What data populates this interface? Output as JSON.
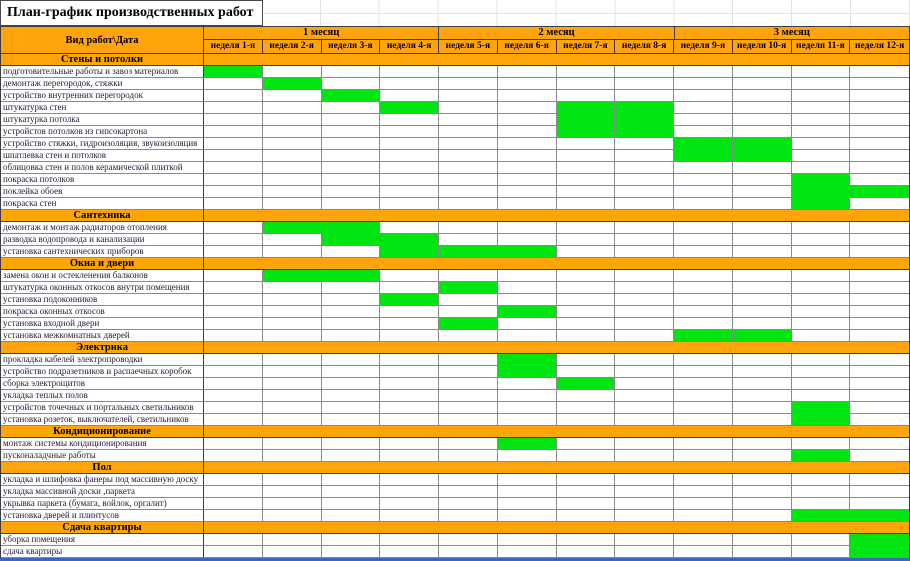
{
  "colors": {
    "header_orange": "#FFA40A",
    "bar_green": "#00E411",
    "grid_dark": "#3d3d3d",
    "grid_light": "#8a8a8a",
    "selection_blue": "#3D64C8"
  },
  "chart_data": {
    "type": "table",
    "subtype": "gantt-schedule",
    "title": "План-график производственных работ",
    "corner_label": "Вид работ\\Дата",
    "legend": "green cell = work scheduled for that week",
    "months": [
      {
        "label": "1 месяц",
        "weeks": [
          "неделя 1-я",
          "неделя 2-я",
          "неделя 3-я",
          "неделя 4-я"
        ]
      },
      {
        "label": "2 месяц",
        "weeks": [
          "неделя 5-я",
          "неделя 6-я",
          "неделя 7-я",
          "неделя 8-я"
        ]
      },
      {
        "label": "3 месяц",
        "weeks": [
          "неделя 9-я",
          "неделя 10-я",
          "неделя 11-я",
          "неделя 12-я"
        ]
      }
    ],
    "sections": [
      {
        "name": "Стены и потолки",
        "tasks": [
          {
            "label": "подготовительные работы и завоз материалов",
            "weeks": [
              1
            ]
          },
          {
            "label": "демонтаж перегородок, стяжки",
            "weeks": [
              2
            ]
          },
          {
            "label": "устройство внутренних перегородок",
            "weeks": [
              3
            ]
          },
          {
            "label": "штукатурка стен",
            "weeks": [
              4,
              7,
              8
            ]
          },
          {
            "label": "штукатурка потолка",
            "weeks": [
              7,
              8
            ]
          },
          {
            "label": "устройстов потолков из гипсокартона",
            "weeks": [
              7,
              8
            ]
          },
          {
            "label": "устройство стяжки, гидроизоляция, звукоизоляция",
            "weeks": [
              9,
              10
            ]
          },
          {
            "label": "шпатлевка стен и потолков",
            "weeks": [
              9,
              10
            ]
          },
          {
            "label": "облицовка стен и полов керамической плиткой",
            "weeks": []
          },
          {
            "label": "покраска потолков",
            "weeks": [
              11
            ]
          },
          {
            "label": "поклейка обоев",
            "weeks": [
              11,
              12
            ]
          },
          {
            "label": "покраска стен",
            "weeks": [
              11
            ]
          }
        ]
      },
      {
        "name": "Сантехника",
        "tasks": [
          {
            "label": "демонтаж и монтаж радиаторов отопления",
            "weeks": [
              2,
              3
            ]
          },
          {
            "label": "разводка водопровода и канализации",
            "weeks": [
              3,
              4
            ]
          },
          {
            "label": "установка сантехнических приборов",
            "weeks": [
              4,
              5,
              6
            ]
          }
        ]
      },
      {
        "name": "Окна и двери",
        "tasks": [
          {
            "label": "замена окон и остекленения балконов",
            "weeks": [
              2,
              3
            ]
          },
          {
            "label": "штукатурка оконных откосов внутри помещения",
            "weeks": [
              5
            ]
          },
          {
            "label": "установка подоконников",
            "weeks": [
              4
            ]
          },
          {
            "label": "покраска оконных откосов",
            "weeks": [
              6
            ]
          },
          {
            "label": "установка входной двери",
            "weeks": [
              5
            ]
          },
          {
            "label": "установка межкомнатных дверей",
            "weeks": [
              9,
              10
            ]
          }
        ]
      },
      {
        "name": "Электрика",
        "tasks": [
          {
            "label": "прокладка кабелей электропроводки",
            "weeks": [
              6
            ]
          },
          {
            "label": "устройство подразетников и распаечных коробок",
            "weeks": [
              6
            ]
          },
          {
            "label": "сборка электрощитов",
            "weeks": [
              7
            ]
          },
          {
            "label": "укладка теплых полов",
            "weeks": []
          },
          {
            "label": "устройстов точечных и портальных светильников",
            "weeks": [
              11
            ]
          },
          {
            "label": "установка розеток, выключателей, светильников",
            "weeks": [
              11
            ]
          }
        ]
      },
      {
        "name": "Кондиционирование",
        "tasks": [
          {
            "label": "монтаж системы кондиционирования",
            "weeks": [
              6
            ]
          },
          {
            "label": "пусконаладчные работы",
            "weeks": [
              11
            ]
          }
        ]
      },
      {
        "name": "Пол",
        "tasks": [
          {
            "label": "укладка и шлифовка фанеры под массивную доску",
            "weeks": []
          },
          {
            "label": "укладка массивной доски ,паркета",
            "weeks": []
          },
          {
            "label": "укрывка паркета (бумага, войлок, оргалит)",
            "weeks": []
          },
          {
            "label": "установка дверей и плинтусов",
            "weeks": [
              11,
              12
            ]
          }
        ]
      },
      {
        "name": "Сдача квартиры",
        "tasks": [
          {
            "label": "уборка помещения",
            "weeks": [
              12
            ]
          },
          {
            "label": "сдача квартиры",
            "weeks": [
              12
            ]
          }
        ]
      }
    ]
  }
}
